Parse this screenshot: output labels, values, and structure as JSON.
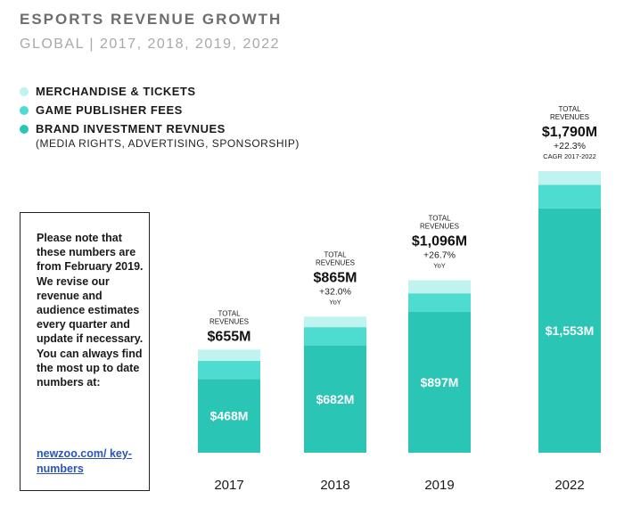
{
  "title": "ESPORTS REVENUE GROWTH",
  "subtitle": "GLOBAL | 2017, 2018, 2019, 2022",
  "legend": {
    "items": [
      {
        "label": "MERCHANDISE & TICKETS",
        "color": "#bff3ef"
      },
      {
        "label": "GAME PUBLISHER FEES",
        "color": "#4ddccf"
      },
      {
        "label": "BRAND INVESTMENT REVNUES",
        "color": "#2bc5b5"
      }
    ],
    "sub_label": "(MEDIA RIGHTS, ADVERTISING, SPONSORSHIP)"
  },
  "note": {
    "text": "Please note that these numbers are from February 2019. We revise our revenue and audience estimates every quarter and update if necessary. You can always find the most up to date numbers at:",
    "link": "newzoo.com/ key-numbers"
  },
  "chart_data": {
    "type": "bar",
    "stacked": true,
    "categories": [
      "2017",
      "2018",
      "2019",
      "2022"
    ],
    "series": [
      {
        "name": "BRAND INVESTMENT REVNUES",
        "values": [
          468,
          682,
          897,
          1553
        ],
        "color": "#2bc5b5"
      },
      {
        "name": "GAME PUBLISHER FEES",
        "values": [
          116,
          116,
          116,
          150
        ],
        "color": "#4ddccf"
      },
      {
        "name": "MERCHANDISE & TICKETS",
        "values": [
          71,
          67,
          83,
          87
        ],
        "color": "#bff3ef"
      }
    ],
    "segment_labels": [
      "$468M",
      "$682M",
      "$897M",
      "$1,553M"
    ],
    "totals": [
      {
        "caption": "TOTAL REVENUES",
        "value": "$655M",
        "growth": "",
        "growth_note": ""
      },
      {
        "caption": "TOTAL REVENUES",
        "value": "$865M",
        "growth": "+32.0%",
        "growth_note": "YoY"
      },
      {
        "caption": "TOTAL REVENUES",
        "value": "$1,096M",
        "growth": "+26.7%",
        "growth_note": "YoY"
      },
      {
        "caption": "TOTAL REVENUES",
        "value": "$1,790M",
        "growth": "+22.3%",
        "growth_note": "CAGR 2017-2022"
      }
    ],
    "ylim": [
      0,
      1790
    ]
  }
}
